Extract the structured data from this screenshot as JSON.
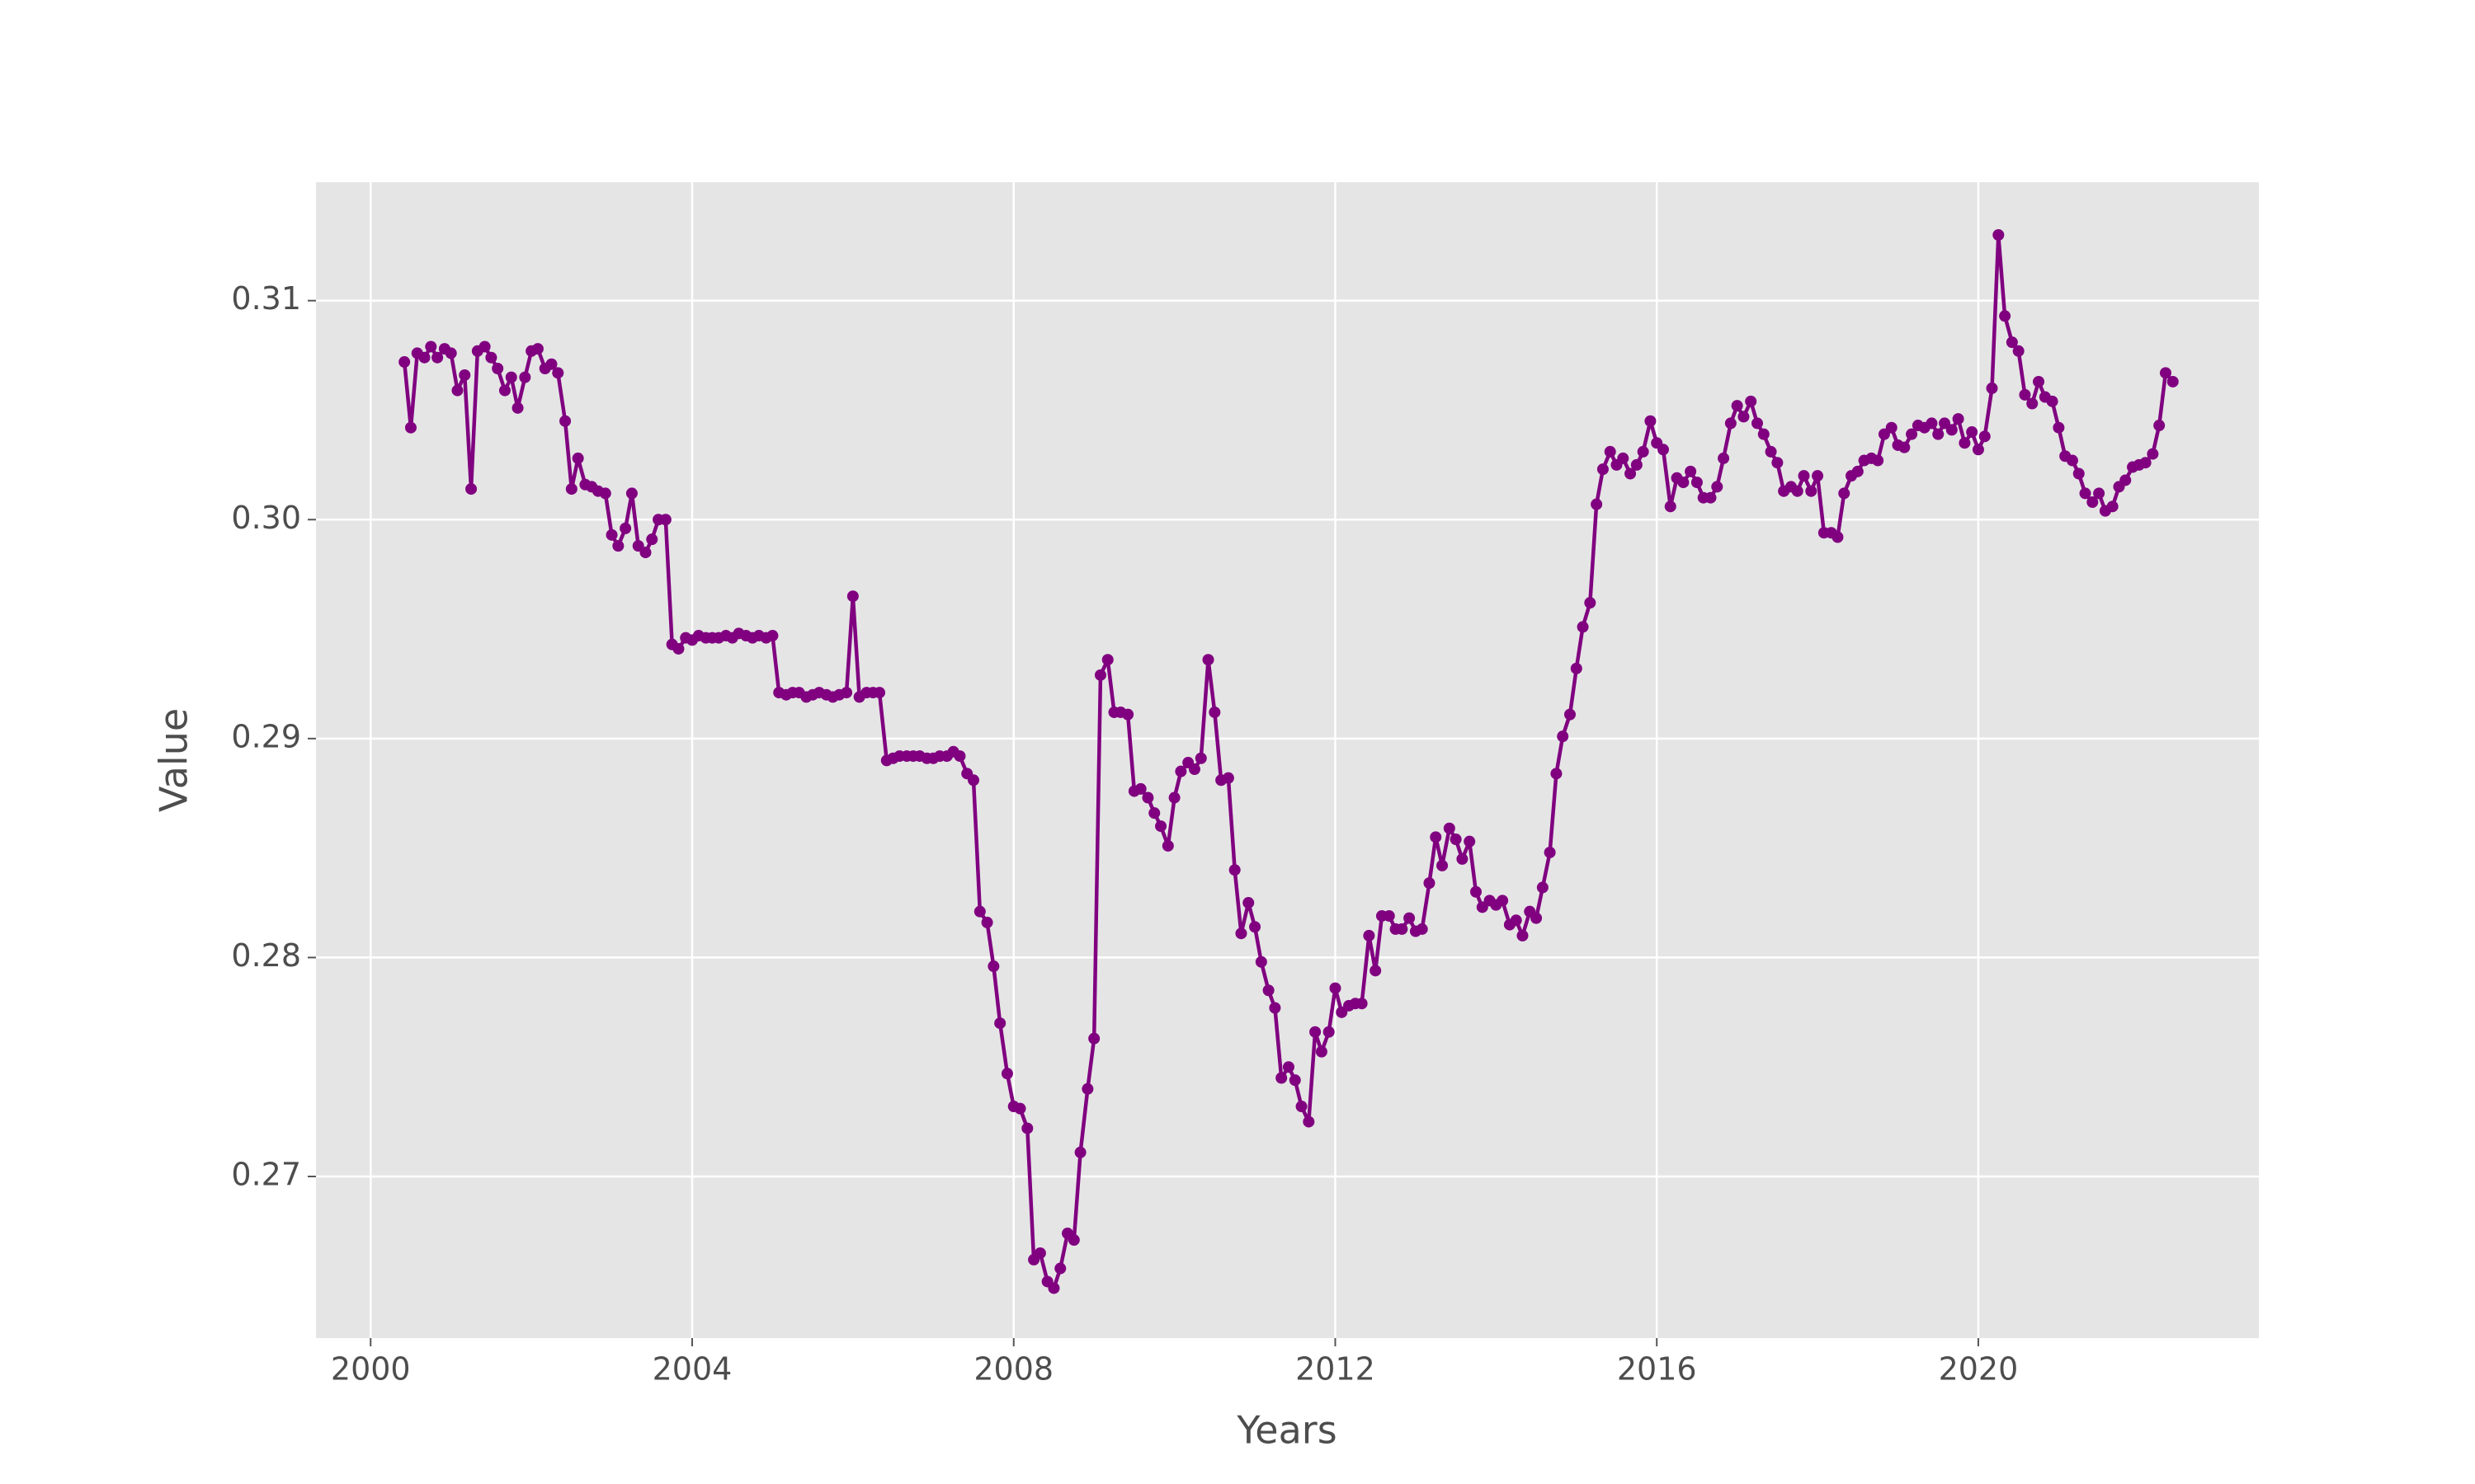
{
  "chart_data": {
    "type": "line",
    "xlabel": "Years",
    "ylabel": "Value",
    "color": "#800080",
    "grid": true,
    "xlim": [
      1999.32,
      2023.49
    ],
    "ylim": [
      0.26262,
      0.31541
    ],
    "xticks": [
      2000,
      2004,
      2008,
      2012,
      2016,
      2020
    ],
    "yticks": [
      0.27,
      0.28,
      0.29,
      {
        "value": 0.3,
        "label": "0.30"
      },
      0.31
    ],
    "x": [
      2000.42,
      2000.5,
      2000.58,
      2000.67,
      2000.75,
      2000.83,
      2000.92,
      2001,
      2001.08,
      2001.17,
      2001.25,
      2001.33,
      2001.42,
      2001.5,
      2001.58,
      2001.67,
      2001.75,
      2001.83,
      2001.92,
      2002,
      2002.08,
      2002.17,
      2002.25,
      2002.33,
      2002.42,
      2002.5,
      2002.58,
      2002.67,
      2002.75,
      2002.83,
      2002.92,
      2003,
      2003.08,
      2003.17,
      2003.25,
      2003.33,
      2003.42,
      2003.5,
      2003.58,
      2003.67,
      2003.75,
      2003.83,
      2003.92,
      2004,
      2004.08,
      2004.17,
      2004.25,
      2004.33,
      2004.42,
      2004.5,
      2004.58,
      2004.67,
      2004.75,
      2004.83,
      2004.92,
      2005,
      2005.08,
      2005.17,
      2005.25,
      2005.33,
      2005.42,
      2005.5,
      2005.58,
      2005.67,
      2005.75,
      2005.83,
      2005.92,
      2006,
      2006.08,
      2006.17,
      2006.25,
      2006.33,
      2006.42,
      2006.5,
      2006.58,
      2006.67,
      2006.75,
      2006.83,
      2006.92,
      2007,
      2007.08,
      2007.17,
      2007.25,
      2007.33,
      2007.42,
      2007.5,
      2007.58,
      2007.67,
      2007.75,
      2007.83,
      2007.92,
      2008,
      2008.08,
      2008.17,
      2008.25,
      2008.33,
      2008.42,
      2008.5,
      2008.58,
      2008.67,
      2008.75,
      2008.83,
      2008.92,
      2009,
      2009.08,
      2009.17,
      2009.25,
      2009.33,
      2009.42,
      2009.5,
      2009.58,
      2009.67,
      2009.75,
      2009.83,
      2009.92,
      2010,
      2010.08,
      2010.17,
      2010.25,
      2010.33,
      2010.42,
      2010.5,
      2010.58,
      2010.67,
      2010.75,
      2010.83,
      2010.92,
      2011,
      2011.08,
      2011.17,
      2011.25,
      2011.33,
      2011.42,
      2011.5,
      2011.58,
      2011.67,
      2011.75,
      2011.83,
      2011.92,
      2012,
      2012.08,
      2012.17,
      2012.25,
      2012.33,
      2012.42,
      2012.5,
      2012.58,
      2012.67,
      2012.75,
      2012.83,
      2012.92,
      2013,
      2013.08,
      2013.17,
      2013.25,
      2013.33,
      2013.42,
      2013.5,
      2013.58,
      2013.67,
      2013.75,
      2013.83,
      2013.92,
      2014,
      2014.08,
      2014.17,
      2014.25,
      2014.33,
      2014.42,
      2014.5,
      2014.58,
      2014.67,
      2014.75,
      2014.83,
      2014.92,
      2015,
      2015.08,
      2015.17,
      2015.25,
      2015.33,
      2015.42,
      2015.5,
      2015.58,
      2015.67,
      2015.75,
      2015.83,
      2015.92,
      2016,
      2016.08,
      2016.17,
      2016.25,
      2016.33,
      2016.42,
      2016.5,
      2016.58,
      2016.67,
      2016.75,
      2016.83,
      2016.92,
      2017,
      2017.08,
      2017.17,
      2017.25,
      2017.33,
      2017.42,
      2017.5,
      2017.58,
      2017.67,
      2017.75,
      2017.83,
      2017.92,
      2018,
      2018.08,
      2018.17,
      2018.25,
      2018.33,
      2018.42,
      2018.5,
      2018.58,
      2018.67,
      2018.75,
      2018.83,
      2018.92,
      2019,
      2019.08,
      2019.17,
      2019.25,
      2019.33,
      2019.42,
      2019.5,
      2019.58,
      2019.67,
      2019.75,
      2019.83,
      2019.92,
      2020,
      2020.08,
      2020.17,
      2020.25,
      2020.33,
      2020.42,
      2020.5,
      2020.58,
      2020.67,
      2020.75,
      2020.83,
      2020.92,
      2021,
      2021.08,
      2021.17,
      2021.25,
      2021.33,
      2021.42,
      2021.5,
      2021.58,
      2021.67,
      2021.75,
      2021.83,
      2021.92,
      2022,
      2022.08,
      2022.17,
      2022.25,
      2022.33,
      2022.42
    ],
    "values": [
      0.3072,
      0.3042,
      0.3076,
      0.3074,
      0.3079,
      0.3074,
      0.3078,
      0.3076,
      0.3059,
      0.3066,
      0.3014,
      0.3077,
      0.3079,
      0.3074,
      0.3069,
      0.3059,
      0.3065,
      0.3051,
      0.3065,
      0.3077,
      0.3078,
      0.3069,
      0.3071,
      0.3067,
      0.3045,
      0.3014,
      0.3028,
      0.3016,
      0.3015,
      0.3013,
      0.3012,
      0.2993,
      0.2988,
      0.2996,
      0.3012,
      0.2988,
      0.2985,
      0.2991,
      0.3,
      0.3,
      0.2943,
      0.2941,
      0.2946,
      0.2945,
      0.2947,
      0.2946,
      0.2946,
      0.2946,
      0.2947,
      0.2946,
      0.2948,
      0.2947,
      0.2946,
      0.2947,
      0.2946,
      0.2947,
      0.2921,
      0.292,
      0.2921,
      0.2921,
      0.2919,
      0.292,
      0.2921,
      0.292,
      0.2919,
      0.292,
      0.2921,
      0.2965,
      0.2919,
      0.2921,
      0.2921,
      0.2921,
      0.289,
      0.2891,
      0.2892,
      0.2892,
      0.2892,
      0.2892,
      0.2891,
      0.2891,
      0.2892,
      0.2892,
      0.2894,
      0.2892,
      0.2884,
      0.2881,
      0.2821,
      0.2816,
      0.2796,
      0.277,
      0.2747,
      0.2732,
      0.2731,
      0.2722,
      0.2662,
      0.2665,
      0.2652,
      0.2649,
      0.2658,
      0.2674,
      0.2671,
      0.2711,
      0.274,
      0.2763,
      0.2929,
      0.2936,
      0.2912,
      0.2912,
      0.2911,
      0.2876,
      0.2877,
      0.2873,
      0.2866,
      0.286,
      0.2851,
      0.2873,
      0.2885,
      0.2889,
      0.2886,
      0.2891,
      0.2936,
      0.2912,
      0.2881,
      0.2882,
      0.284,
      0.2811,
      0.2825,
      0.2814,
      0.2798,
      0.2785,
      0.2777,
      0.2745,
      0.275,
      0.2744,
      0.2732,
      0.2725,
      0.2766,
      0.2757,
      0.2766,
      0.2786,
      0.2775,
      0.2778,
      0.2779,
      0.2779,
      0.281,
      0.2794,
      0.2819,
      0.2819,
      0.2813,
      0.2813,
      0.2818,
      0.2812,
      0.2813,
      0.2834,
      0.2855,
      0.2842,
      0.2859,
      0.2854,
      0.2845,
      0.2853,
      0.283,
      0.2823,
      0.2826,
      0.2824,
      0.2826,
      0.2815,
      0.2817,
      0.281,
      0.2821,
      0.2818,
      0.2832,
      0.2848,
      0.2884,
      0.2901,
      0.2911,
      0.2932,
      0.2951,
      0.2962,
      0.3007,
      0.3023,
      0.3031,
      0.3025,
      0.3028,
      0.3021,
      0.3025,
      0.3031,
      0.3045,
      0.3035,
      0.3032,
      0.3006,
      0.3019,
      0.3017,
      0.3022,
      0.3017,
      0.301,
      0.301,
      0.3015,
      0.3028,
      0.3044,
      0.3052,
      0.3047,
      0.3054,
      0.3044,
      0.3039,
      0.3031,
      0.3026,
      0.3013,
      0.3015,
      0.3013,
      0.302,
      0.3013,
      0.302,
      0.2994,
      0.2994,
      0.2992,
      0.3012,
      0.302,
      0.3022,
      0.3027,
      0.3028,
      0.3027,
      0.3039,
      0.3042,
      0.3034,
      0.3033,
      0.3039,
      0.3043,
      0.3042,
      0.3044,
      0.3039,
      0.3044,
      0.3041,
      0.3046,
      0.3035,
      0.304,
      0.3032,
      0.3038,
      0.306,
      0.313,
      0.3093,
      0.3081,
      0.3077,
      0.3057,
      0.3053,
      0.3063,
      0.3056,
      0.3054,
      0.3042,
      0.3029,
      0.3027,
      0.3021,
      0.3012,
      0.3008,
      0.3012,
      0.3004,
      0.3006,
      0.3015,
      0.3018,
      0.3024,
      0.3025,
      0.3026,
      0.303,
      0.3043,
      0.3067,
      0.3063
    ]
  }
}
